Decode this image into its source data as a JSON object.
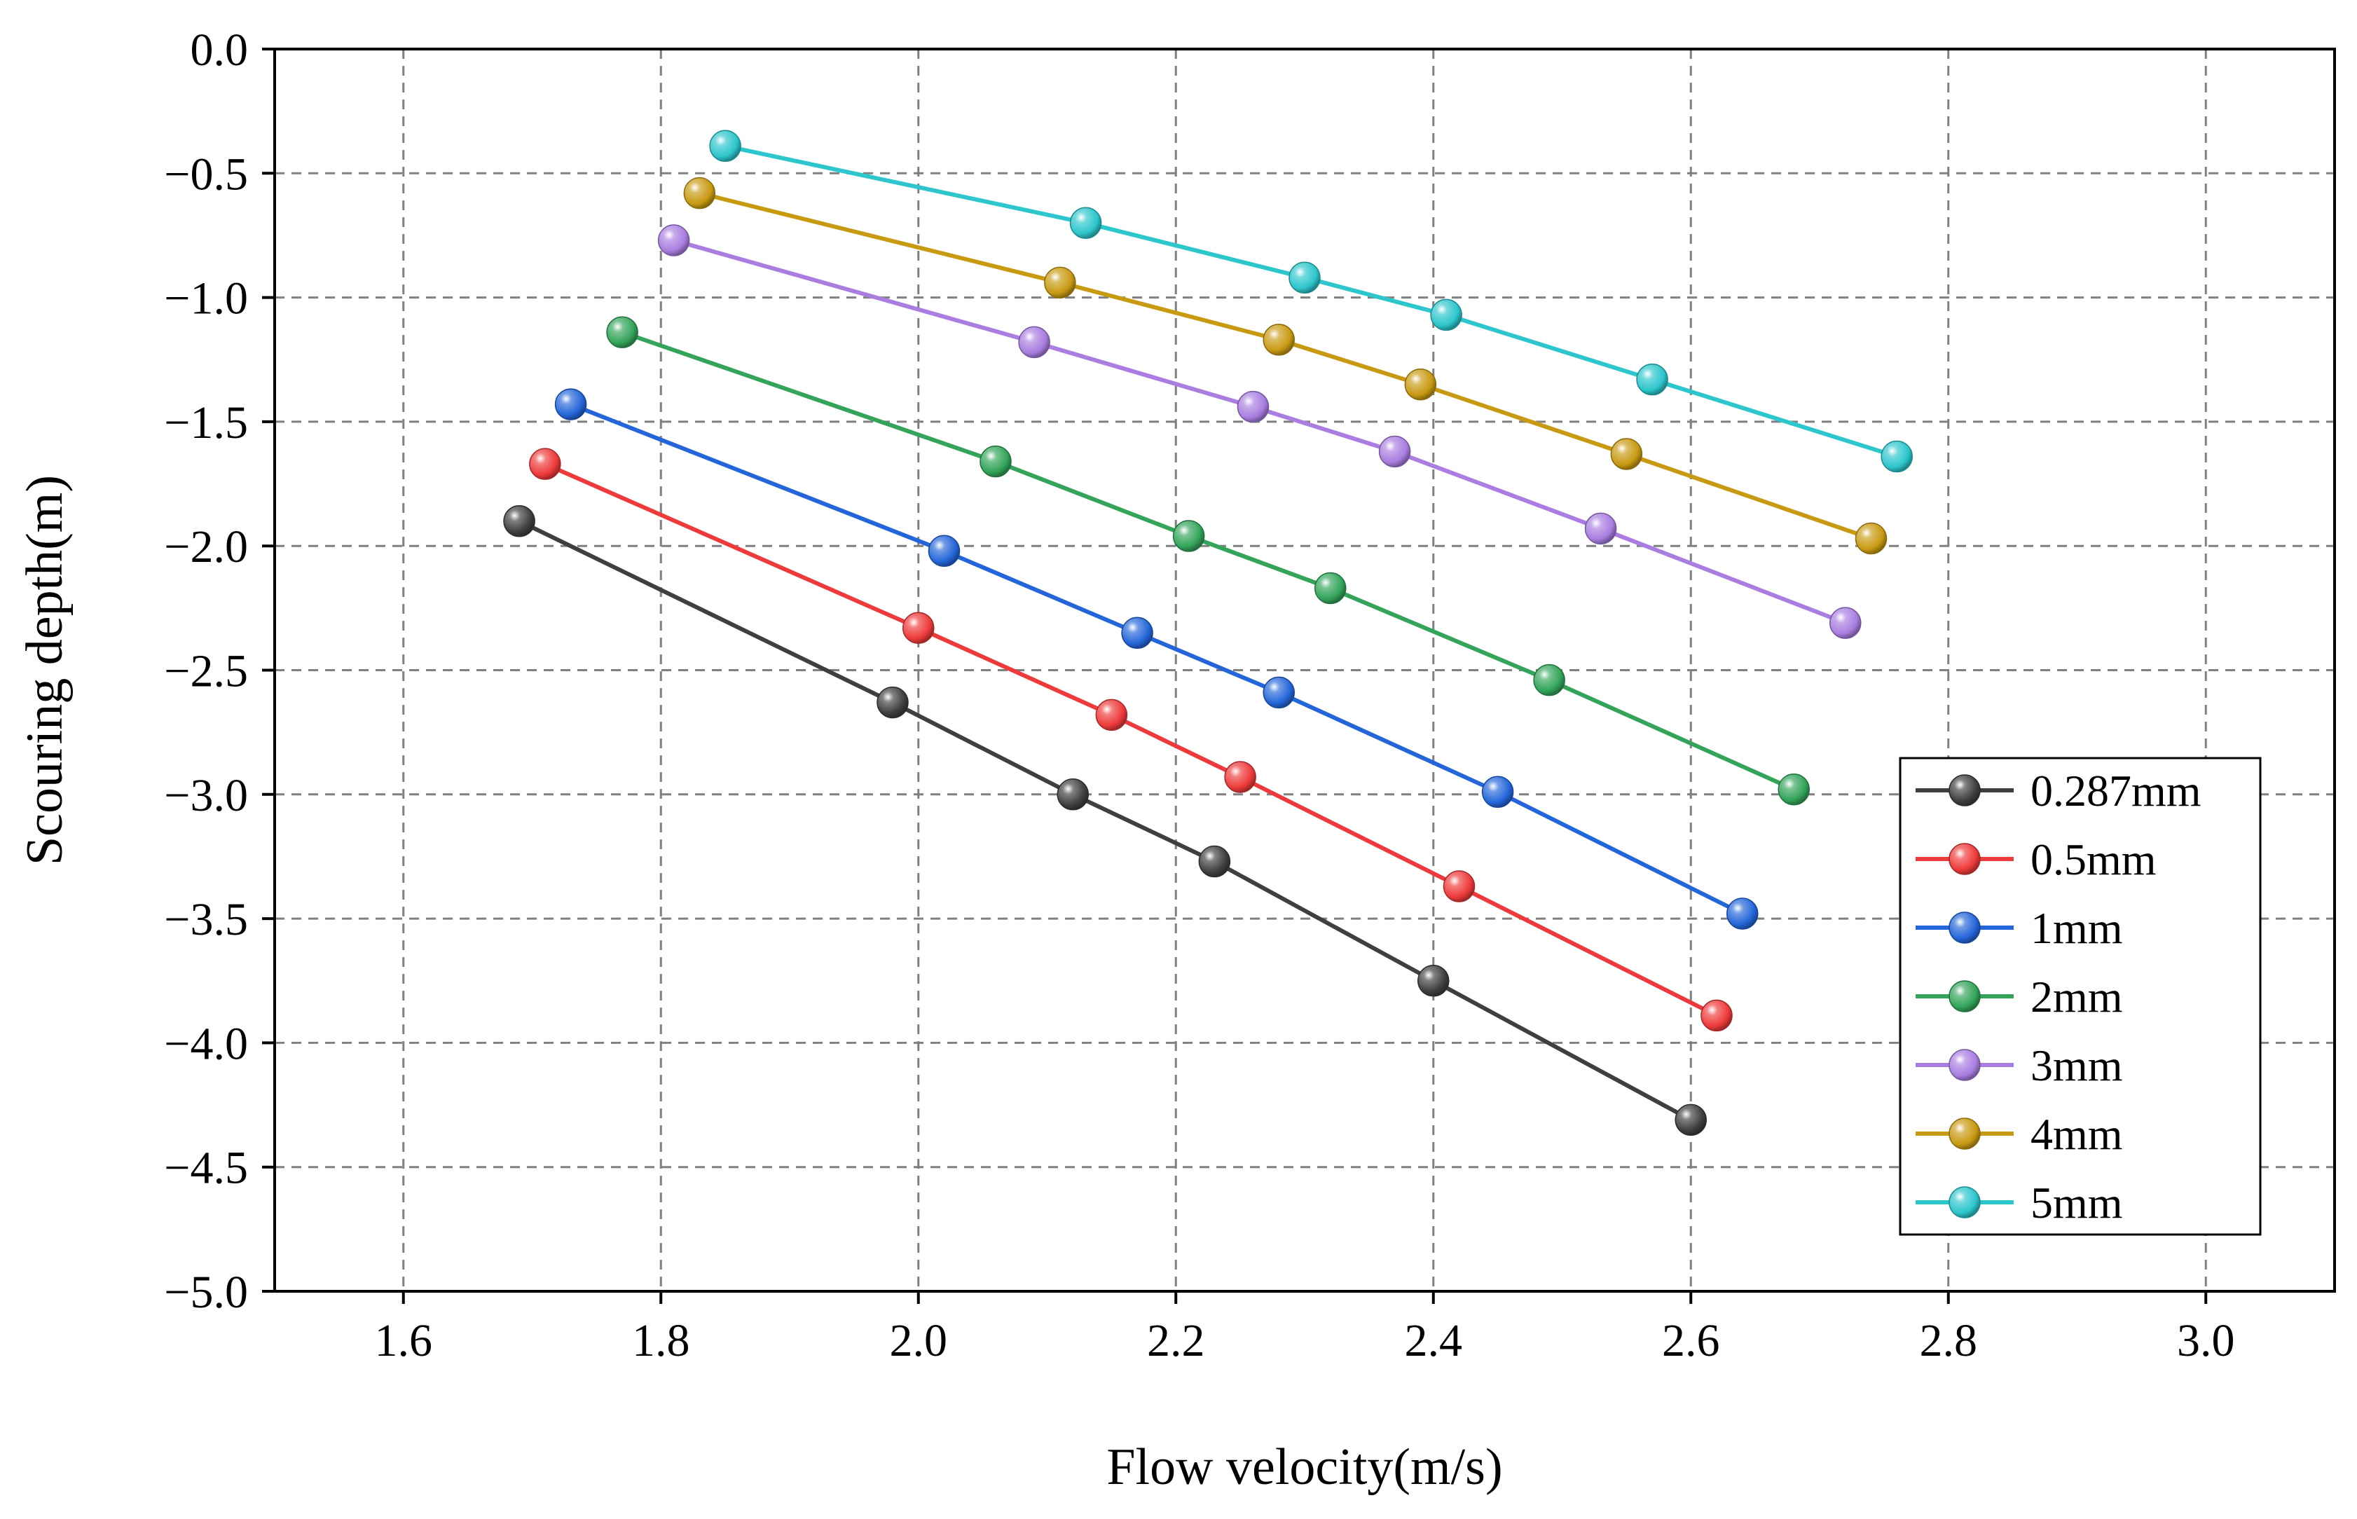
{
  "chart_data": {
    "type": "line",
    "title": "",
    "xlabel": "Flow velocity(m/s)",
    "ylabel": "Scouring depth(m)",
    "xlim": [
      1.5,
      3.1
    ],
    "ylim": [
      -5.0,
      0.0
    ],
    "xticks": [
      1.6,
      1.8,
      2.0,
      2.2,
      2.4,
      2.6,
      2.8,
      3.0
    ],
    "xtick_labels": [
      "1.6",
      "1.8",
      "2.0",
      "2.2",
      "2.4",
      "2.6",
      "2.8",
      "3.0"
    ],
    "yticks": [
      0.0,
      -0.5,
      -1.0,
      -1.5,
      -2.0,
      -2.5,
      -3.0,
      -3.5,
      -4.0,
      -4.5,
      -5.0
    ],
    "ytick_labels": [
      "0.0",
      "−0.5",
      "−1.0",
      "−1.5",
      "−2.0",
      "−2.5",
      "−3.0",
      "−3.5",
      "−4.0",
      "−4.5",
      "−5.0"
    ],
    "grid": true,
    "legend_position": "bottom-right",
    "series": [
      {
        "name": "0.287mm",
        "color": "#3f3f3f",
        "x": [
          1.69,
          1.98,
          2.12,
          2.23,
          2.4,
          2.6
        ],
        "y": [
          -1.9,
          -2.63,
          -3.0,
          -3.27,
          -3.75,
          -4.31
        ]
      },
      {
        "name": "0.5mm",
        "color": "#ee3a3a",
        "x": [
          1.71,
          2.0,
          2.15,
          2.25,
          2.42,
          2.62
        ],
        "y": [
          -1.67,
          -2.33,
          -2.68,
          -2.93,
          -3.37,
          -3.89
        ]
      },
      {
        "name": "1mm",
        "color": "#2466d9",
        "x": [
          1.73,
          2.02,
          2.17,
          2.28,
          2.45,
          2.64
        ],
        "y": [
          -1.43,
          -2.02,
          -2.35,
          -2.59,
          -2.99,
          -3.48
        ]
      },
      {
        "name": "2mm",
        "color": "#33a45a",
        "x": [
          1.77,
          2.06,
          2.21,
          2.32,
          2.49,
          2.68
        ],
        "y": [
          -1.14,
          -1.66,
          -1.96,
          -2.17,
          -2.54,
          -2.98
        ]
      },
      {
        "name": "3mm",
        "color": "#a97ee0",
        "x": [
          1.81,
          2.09,
          2.26,
          2.37,
          2.53,
          2.72
        ],
        "y": [
          -0.77,
          -1.18,
          -1.44,
          -1.62,
          -1.93,
          -2.31
        ]
      },
      {
        "name": "4mm",
        "color": "#c89a12",
        "x": [
          1.83,
          2.11,
          2.28,
          2.39,
          2.55,
          2.74
        ],
        "y": [
          -0.58,
          -0.94,
          -1.17,
          -1.35,
          -1.63,
          -1.97
        ]
      },
      {
        "name": "5mm",
        "color": "#2cc6cc",
        "x": [
          1.85,
          2.13,
          2.3,
          2.41,
          2.57,
          2.76
        ],
        "y": [
          -0.39,
          -0.7,
          -0.92,
          -1.07,
          -1.33,
          -1.64
        ]
      }
    ]
  }
}
